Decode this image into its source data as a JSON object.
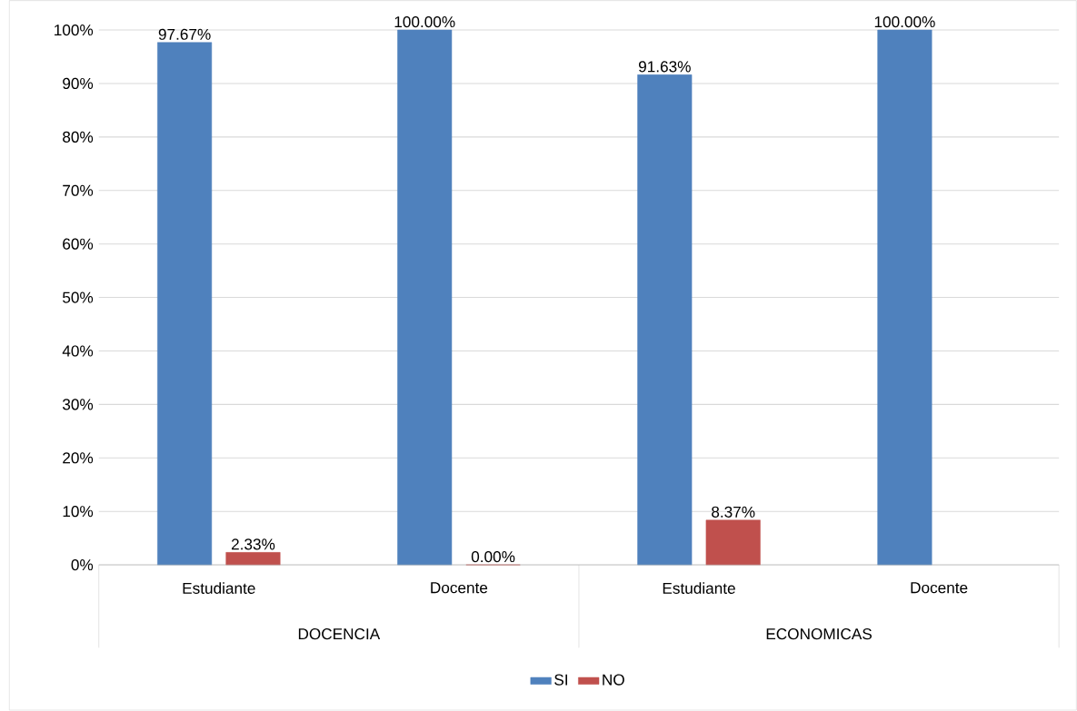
{
  "chart_data": {
    "type": "bar",
    "categories": [
      "Estudiante",
      "Docente",
      "Estudiante",
      "Docente"
    ],
    "series": [
      {
        "name": "SI",
        "color": "#4f81bd",
        "values": [
          97.67,
          100.0,
          91.63,
          100.0
        ],
        "value_labels": [
          "97.67%",
          "100.00%",
          "91.63%",
          "100.00%"
        ]
      },
      {
        "name": "NO",
        "color": "#c0504d",
        "values": [
          2.33,
          0.0,
          8.37,
          null
        ],
        "value_labels": [
          "2.33%",
          "0.00%",
          "8.37%",
          null
        ]
      }
    ],
    "ylim": [
      0,
      100
    ],
    "yticks": [
      {
        "value": 0,
        "label": "0%"
      },
      {
        "value": 10,
        "label": "10%"
      },
      {
        "value": 20,
        "label": "20%"
      },
      {
        "value": 30,
        "label": "30%"
      },
      {
        "value": 40,
        "label": "40%"
      },
      {
        "value": 50,
        "label": "50%"
      },
      {
        "value": 60,
        "label": "60%"
      },
      {
        "value": 70,
        "label": "70%"
      },
      {
        "value": 80,
        "label": "80%"
      },
      {
        "value": 90,
        "label": "90%"
      },
      {
        "value": 100,
        "label": "100%"
      }
    ],
    "grid": "y",
    "legend": "bottom",
    "annotations": [
      "DOCENCIA",
      "ECONOMICAS"
    ]
  }
}
